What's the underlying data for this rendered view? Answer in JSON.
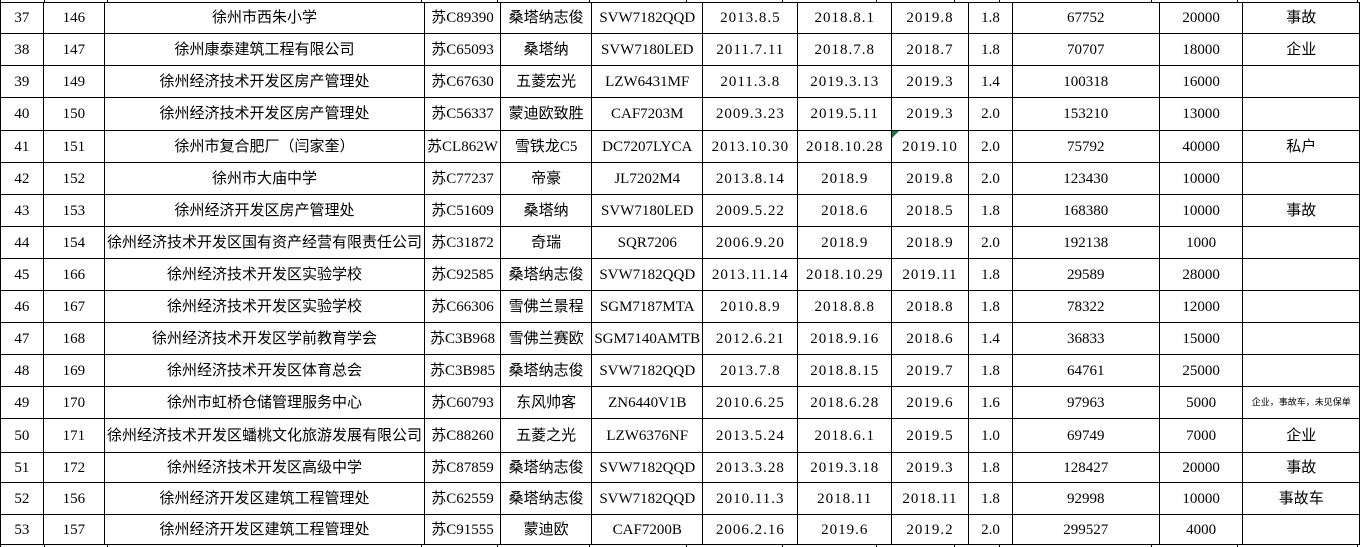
{
  "table": {
    "rows": [
      {
        "no": "37",
        "seq": "146",
        "org": "徐州市西朱小学",
        "plate": "苏C89390",
        "brand": "桑塔纳志俊",
        "model": "SVW7182QQD",
        "date1": "2013.8.5",
        "date2": "2018.8.1",
        "date3": "2019.8",
        "displacement": "1.8",
        "mileage": "67752",
        "price": "20000",
        "remark": "事故"
      },
      {
        "no": "38",
        "seq": "147",
        "org": "徐州康泰建筑工程有限公司",
        "plate": "苏C65093",
        "brand": "桑塔纳",
        "model": "SVW7180LED",
        "date1": "2011.7.11",
        "date2": "2018.7.8",
        "date3": "2018.7",
        "displacement": "1.8",
        "mileage": "70707",
        "price": "18000",
        "remark": "企业"
      },
      {
        "no": "39",
        "seq": "149",
        "org": "徐州经济技术开发区房产管理处",
        "plate": "苏C67630",
        "brand": "五菱宏光",
        "model": "LZW6431MF",
        "date1": "2011.3.8",
        "date2": "2019.3.13",
        "date3": "2019.3",
        "displacement": "1.4",
        "mileage": "100318",
        "price": "16000",
        "remark": ""
      },
      {
        "no": "40",
        "seq": "150",
        "org": "徐州经济技术开发区房产管理处",
        "plate": "苏C56337",
        "brand": "蒙迪欧致胜",
        "model": "CAF7203M",
        "date1": "2009.3.23",
        "date2": "2019.5.11",
        "date3": "2019.3",
        "displacement": "2.0",
        "mileage": "153210",
        "price": "13000",
        "remark": ""
      },
      {
        "no": "41",
        "seq": "151",
        "org": "徐州市复合肥厂（闫家奎）",
        "plate": "苏CL862W",
        "brand": "雪铁龙C5",
        "model": "DC7207LYCA",
        "date1": "2013.10.30",
        "date2": "2018.10.28",
        "date3": "2019.10",
        "displacement": "2.0",
        "mileage": "75792",
        "price": "40000",
        "remark": "私户"
      },
      {
        "no": "42",
        "seq": "152",
        "org": "徐州市大庙中学",
        "plate": "苏C77237",
        "brand": "帝豪",
        "model": "JL7202M4",
        "date1": "2013.8.14",
        "date2": "2018.9",
        "date3": "2019.8",
        "displacement": "2.0",
        "mileage": "123430",
        "price": "10000",
        "remark": ""
      },
      {
        "no": "43",
        "seq": "153",
        "org": "徐州经济开发区房产管理处",
        "plate": "苏C51609",
        "brand": "桑塔纳",
        "model": "SVW7180LED",
        "date1": "2009.5.22",
        "date2": "2018.6",
        "date3": "2018.5",
        "displacement": "1.8",
        "mileage": "168380",
        "price": "10000",
        "remark": "事故"
      },
      {
        "no": "44",
        "seq": "154",
        "org": "徐州经济技术开发区国有资产经营有限责任公司",
        "plate": "苏C31872",
        "brand": "奇瑞",
        "model": "SQR7206",
        "date1": "2006.9.20",
        "date2": "2018.9",
        "date3": "2018.9",
        "displacement": "2.0",
        "mileage": "192138",
        "price": "1000",
        "remark": ""
      },
      {
        "no": "45",
        "seq": "166",
        "org": "徐州经济技术开发区实验学校",
        "plate": "苏C92585",
        "brand": "桑塔纳志俊",
        "model": "SVW7182QQD",
        "date1": "2013.11.14",
        "date2": "2018.10.29",
        "date3": "2019.11",
        "displacement": "1.8",
        "mileage": "29589",
        "price": "28000",
        "remark": ""
      },
      {
        "no": "46",
        "seq": "167",
        "org": "徐州经济技术开发区实验学校",
        "plate": "苏C66306",
        "brand": "雪佛兰景程",
        "model": "SGM7187MTA",
        "date1": "2010.8.9",
        "date2": "2018.8.8",
        "date3": "2018.8",
        "displacement": "1.8",
        "mileage": "78322",
        "price": "12000",
        "remark": ""
      },
      {
        "no": "47",
        "seq": "168",
        "org": "徐州经济技术开发区学前教育学会",
        "plate": "苏C3B968",
        "brand": "雪佛兰赛欧",
        "model": "SGM7140AMTB",
        "date1": "2012.6.21",
        "date2": "2018.9.16",
        "date3": "2018.6",
        "displacement": "1.4",
        "mileage": "36833",
        "price": "15000",
        "remark": ""
      },
      {
        "no": "48",
        "seq": "169",
        "org": "徐州经济技术开发区体育总会",
        "plate": "苏C3B985",
        "brand": "桑塔纳志俊",
        "model": "SVW7182QQD",
        "date1": "2013.7.8",
        "date2": "2018.8.15",
        "date3": "2019.7",
        "displacement": "1.8",
        "mileage": "64761",
        "price": "25000",
        "remark": ""
      },
      {
        "no": "49",
        "seq": "170",
        "org": "徐州市虹桥仓储管理服务中心",
        "plate": "苏C60793",
        "brand": "东风帅客",
        "model": "ZN6440V1B",
        "date1": "2010.6.25",
        "date2": "2018.6.28",
        "date3": "2019.6",
        "displacement": "1.6",
        "mileage": "97963",
        "price": "5000",
        "remark": "企业，事故车，未见保单"
      },
      {
        "no": "50",
        "seq": "171",
        "org": "徐州经济技术开发区蟠桃文化旅游发展有限公司",
        "plate": "苏C88260",
        "brand": "五菱之光",
        "model": "LZW6376NF",
        "date1": "2013.5.24",
        "date2": "2018.6.1",
        "date3": "2019.5",
        "displacement": "1.0",
        "mileage": "69749",
        "price": "7000",
        "remark": "企业"
      },
      {
        "no": "51",
        "seq": "172",
        "org": "徐州经济技术开发区高级中学",
        "plate": "苏C87859",
        "brand": "桑塔纳志俊",
        "model": "SVW7182QQD",
        "date1": "2013.3.28",
        "date2": "2019.3.18",
        "date3": "2019.3",
        "displacement": "1.8",
        "mileage": "128427",
        "price": "20000",
        "remark": "事故"
      },
      {
        "no": "52",
        "seq": "156",
        "org": "徐州经济开发区建筑工程管理处",
        "plate": "苏C62559",
        "brand": "桑塔纳志俊",
        "model": "SVW7182QQD",
        "date1": "2010.11.3",
        "date2": "2018.11",
        "date3": "2018.11",
        "displacement": "1.8",
        "mileage": "92998",
        "price": "10000",
        "remark": "事故车"
      },
      {
        "no": "53",
        "seq": "157",
        "org": "徐州经济开发区建筑工程管理处",
        "plate": "苏C91555",
        "brand": "蒙迪欧",
        "model": "CAF7200B",
        "date1": "2006.2.16",
        "date2": "2019.6",
        "date3": "2019.2",
        "displacement": "2.0",
        "mileage": "299527",
        "price": "4000",
        "remark": ""
      }
    ],
    "error_indicator": {
      "row": "41",
      "column": "date3",
      "color": "#1e7145"
    }
  }
}
